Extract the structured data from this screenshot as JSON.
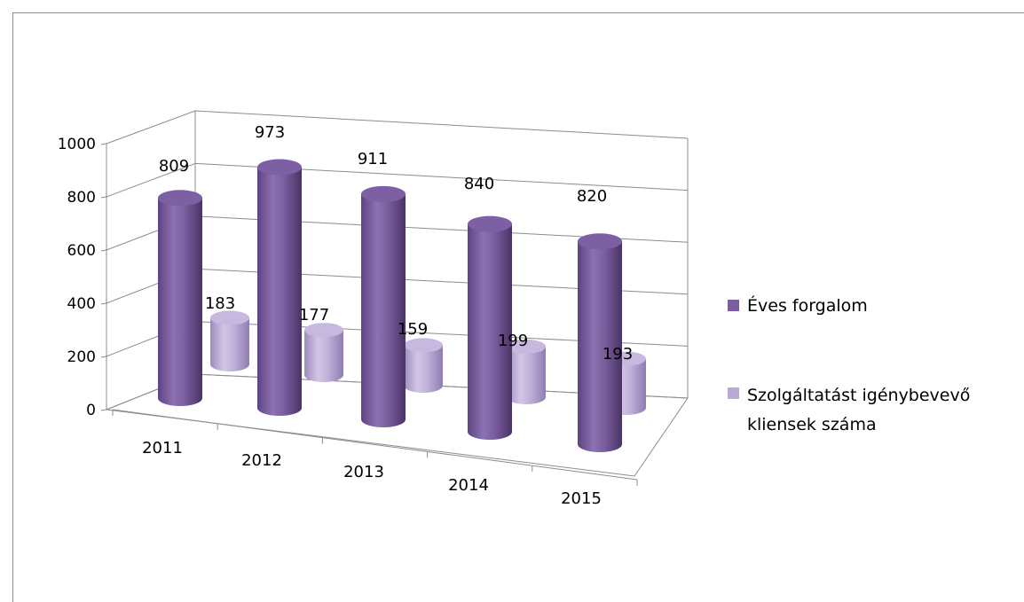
{
  "chart_data": {
    "type": "bar",
    "style": "3d-cylinder",
    "categories": [
      "2011",
      "2012",
      "2013",
      "2014",
      "2015"
    ],
    "series": [
      {
        "name": "Éves forgalom",
        "values": [
          809,
          973,
          911,
          840,
          820
        ],
        "color": "#7a5e9e"
      },
      {
        "name": "Szolgáltatást igénybevevő kliensek száma",
        "values": [
          183,
          177,
          159,
          199,
          193
        ],
        "color": "#b9a9d3"
      }
    ],
    "yticks": [
      "0",
      "200",
      "400",
      "600",
      "800",
      "1000"
    ],
    "ylim": [
      0,
      1000
    ],
    "grid": true,
    "legend": "right"
  },
  "legend": {
    "item1": "Éves forgalom",
    "item2_line1": "Szolgáltatást igénybevevő",
    "item2_line2": "kliensek száma"
  }
}
